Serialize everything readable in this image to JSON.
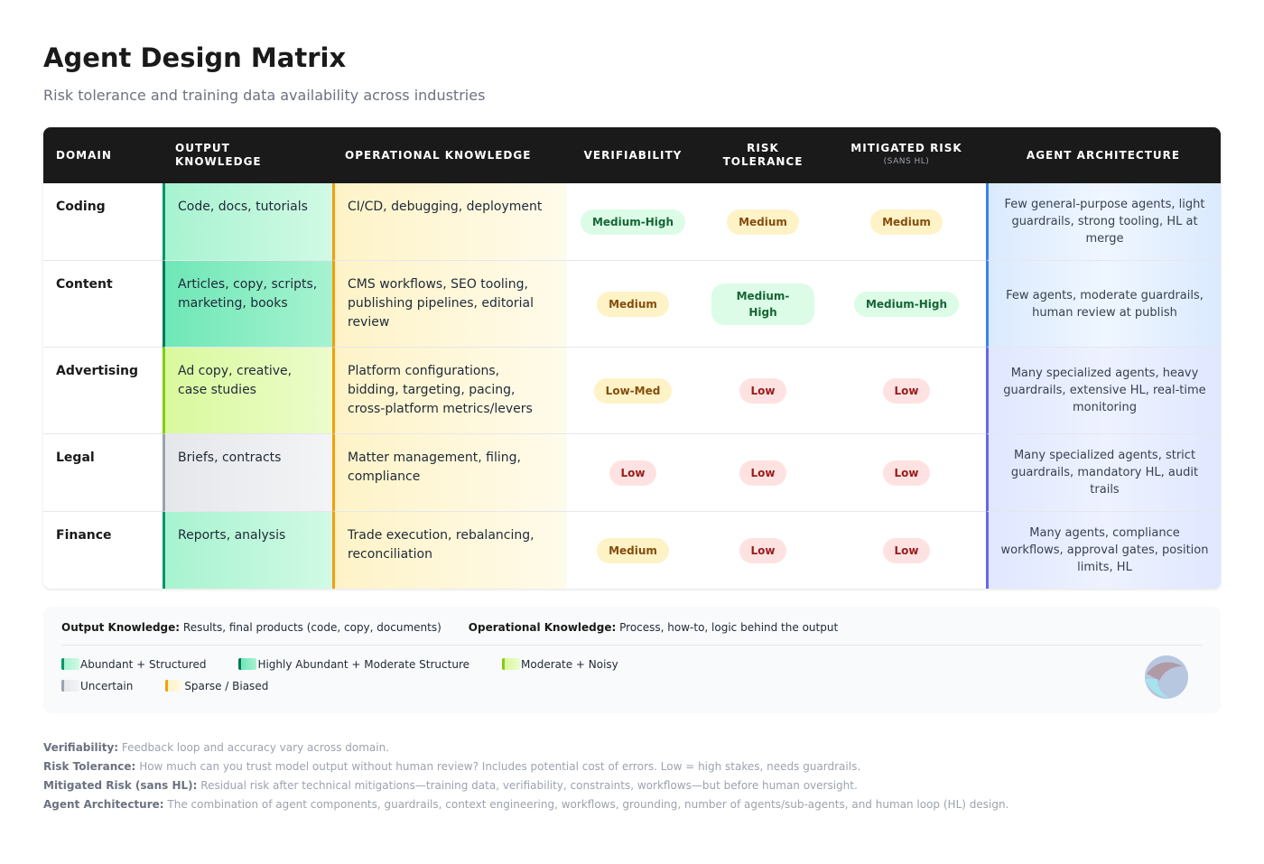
{
  "header": {
    "title": "Agent Design Matrix",
    "subtitle": "Risk tolerance and training data availability across industries"
  },
  "table": {
    "columns": [
      {
        "label": "DOMAIN"
      },
      {
        "label": "OUTPUT KNOWLEDGE"
      },
      {
        "label": "OPERATIONAL KNOWLEDGE"
      },
      {
        "label": "VERIFIABILITY"
      },
      {
        "label": "RISK TOLERANCE"
      },
      {
        "label": "MITIGATED RISK",
        "note": "(SANS HL)"
      },
      {
        "label": "AGENT ARCHITECTURE"
      }
    ],
    "rows": [
      {
        "domain": "Coding",
        "output": "Code, docs, tutorials",
        "output_category": 0,
        "operational": "CI/CD, debugging, deployment",
        "operational_category": 4,
        "verifiability": "Medium-High",
        "risk_tolerance": "Medium",
        "mitigated_risk": "Medium",
        "architecture": "Few general-purpose agents, light guardrails, strong tooling, HL at merge",
        "architecture_color": {
          "border": "#3b82f6",
          "fill": "#dbeafe",
          "fade": "#eff6ff"
        }
      },
      {
        "domain": "Content",
        "output": "Articles, copy, scripts, marketing, books",
        "output_category": 1,
        "operational": "CMS workflows, SEO tooling, publishing pipelines, editorial review",
        "operational_category": 4,
        "verifiability": "Medium",
        "risk_tolerance": "Medium-High",
        "mitigated_risk": "Medium-High",
        "architecture": "Few agents, moderate guardrails, human review at publish",
        "architecture_color": {
          "border": "#3b82f6",
          "fill": "#dbeafe",
          "fade": "#eff6ff"
        }
      },
      {
        "domain": "Advertising",
        "output": "Ad copy, creative, case studies",
        "output_category": 2,
        "operational": "Platform configurations, bidding, targeting, pacing, cross-platform metrics/levers",
        "operational_category": 4,
        "verifiability": "Low-Med",
        "risk_tolerance": "Low",
        "mitigated_risk": "Low",
        "architecture": "Many specialized agents, heavy guardrails, extensive HL, real-time monitoring",
        "architecture_color": {
          "border": "#6366f1",
          "fill": "#e0e7ff",
          "fade": "#eef2ff"
        }
      },
      {
        "domain": "Legal",
        "output": "Briefs, contracts",
        "output_category": 3,
        "operational": "Matter management, filing, compliance",
        "operational_category": 4,
        "verifiability": "Low",
        "risk_tolerance": "Low",
        "mitigated_risk": "Low",
        "architecture": "Many specialized agents, strict guardrails, mandatory HL, audit trails",
        "architecture_color": {
          "border": "#6366f1",
          "fill": "#e0e7ff",
          "fade": "#eef2ff"
        }
      },
      {
        "domain": "Finance",
        "output": "Reports, analysis",
        "output_category": 0,
        "operational": "Trade execution, rebalancing, reconciliation",
        "operational_category": 4,
        "verifiability": "Medium",
        "risk_tolerance": "Low",
        "mitigated_risk": "Low",
        "architecture": "Many agents, compliance workflows, approval gates, position limits, HL",
        "architecture_color": {
          "border": "#6366f1",
          "fill": "#e0e7ff",
          "fade": "#eef2ff"
        }
      }
    ],
    "rating_colors": [
      {
        "label": "Medium-High",
        "bg": "#dcfce7",
        "fg": "#166534"
      },
      {
        "label": "Medium",
        "bg": "#fef3c7",
        "fg": "#854d0e"
      },
      {
        "label": "Low-Med",
        "bg": "#fef3c7",
        "fg": "#854d0e"
      },
      {
        "label": "Low",
        "bg": "#fee2e2",
        "fg": "#991b1b"
      }
    ]
  },
  "legend": {
    "definitions": [
      {
        "term": "Output Knowledge:",
        "text": "Results, final products (code, copy, documents)"
      },
      {
        "term": "Operational Knowledge:",
        "text": "Process, how-to, logic behind the output"
      }
    ],
    "categories": [
      {
        "name": "Abundant + Structured",
        "border": "#059669",
        "fill": "#a7f3d0",
        "fade": "#d1fae5"
      },
      {
        "name": "Highly Abundant + Moderate Structure",
        "border": "#047857",
        "fill": "#6ee7b7",
        "fade": "#a7f3d0"
      },
      {
        "name": "Moderate + Noisy",
        "border": "#84cc16",
        "fill": "#d9f99d",
        "fade": "#ecfccb"
      },
      {
        "name": "Uncertain",
        "border": "#9ca3af",
        "fill": "#e5e7eb",
        "fade": "#f3f4f6"
      },
      {
        "name": "Sparse / Biased",
        "border": "#f59e0b",
        "fill": "#fef3c7",
        "fade": "#fffbeb"
      }
    ]
  },
  "footnotes": [
    {
      "term": "Verifiability:",
      "text": "Feedback loop and accuracy vary across domain."
    },
    {
      "term": "Risk Tolerance:",
      "text": "How much can you trust model output without human review? Includes potential cost of errors. Low = high stakes, needs guardrails."
    },
    {
      "term": "Mitigated Risk (sans HL):",
      "text": "Residual risk after technical mitigations—training data, verifiability, constraints, workflows—but before human oversight."
    },
    {
      "term": "Agent Architecture:",
      "text": "The combination of agent components, guardrails, context engineering, workflows, grounding, number of agents/sub-agents, and human loop (HL) design."
    }
  ]
}
